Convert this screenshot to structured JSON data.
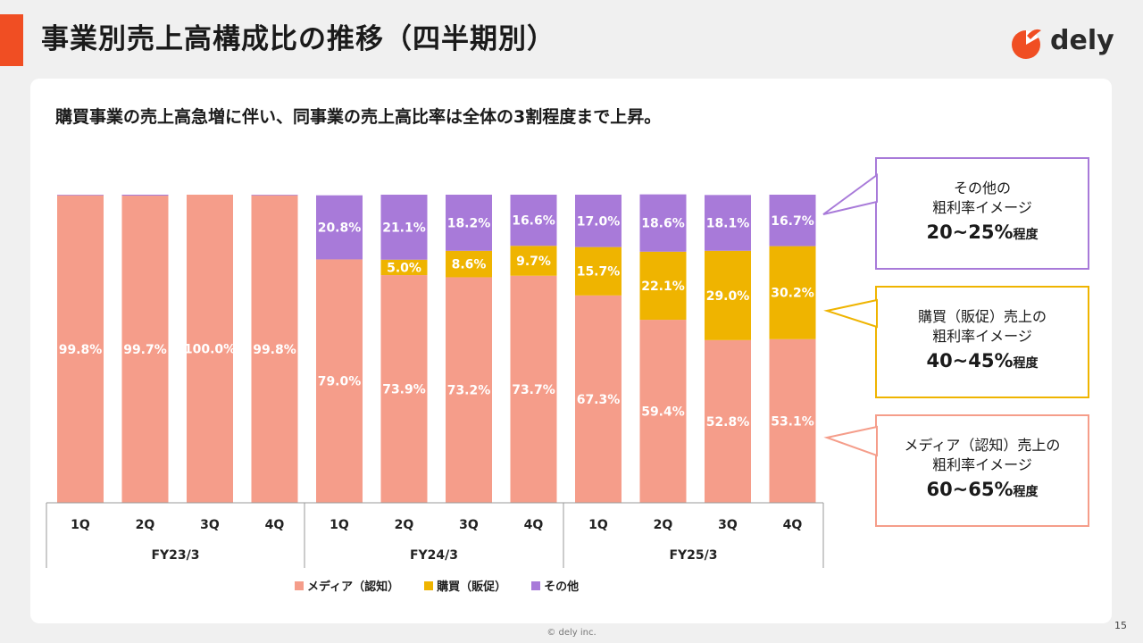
{
  "page_title": "事業別売上高構成比の推移（四半期別）",
  "subtitle": "購買事業の売上高急増に伴い、同事業の売上高比率は全体の3割程度まで上昇。",
  "logo_text": "dely",
  "page_number": "15",
  "copyright": "© dely inc.",
  "colors": {
    "media": "#f59d8a",
    "purchase": "#efb400",
    "other": "#a87ad9",
    "brand": "#f04e23"
  },
  "callouts": [
    {
      "line1": "その他の",
      "line2": "粗利率イメージ",
      "pct": "20~25%",
      "suffix": "程度",
      "color": "#a87ad9"
    },
    {
      "line1": "購買（販促）売上の",
      "line2": "粗利率イメージ",
      "pct": "40~45%",
      "suffix": "程度",
      "color": "#efb400"
    },
    {
      "line1": "メディア（認知）売上の",
      "line2": "粗利率イメージ",
      "pct": "60~65%",
      "suffix": "程度",
      "color": "#f59d8a"
    }
  ],
  "chart_data": {
    "type": "bar",
    "stacked": true,
    "percent_stacked": true,
    "categories": [
      "1Q",
      "2Q",
      "3Q",
      "4Q",
      "1Q",
      "2Q",
      "3Q",
      "4Q",
      "1Q",
      "2Q",
      "3Q",
      "4Q"
    ],
    "groups": [
      {
        "label": "FY23/3",
        "count": 4
      },
      {
        "label": "FY24/3",
        "count": 4
      },
      {
        "label": "FY25/3",
        "count": 4
      }
    ],
    "series": [
      {
        "name": "メディア（認知）",
        "values": [
          99.8,
          99.7,
          100.0,
          99.8,
          79.0,
          73.9,
          73.2,
          73.7,
          67.3,
          59.4,
          52.8,
          53.1
        ],
        "labels": [
          "99.8%",
          "99.7%",
          "100.0%",
          "99.8%",
          "79.0%",
          "73.9%",
          "73.2%",
          "73.7%",
          "67.3%",
          "59.4%",
          "52.8%",
          "53.1%"
        ]
      },
      {
        "name": "購買（販促）",
        "values": [
          0,
          0,
          0,
          0,
          0,
          5.0,
          8.6,
          9.7,
          15.7,
          22.1,
          29.0,
          30.2
        ],
        "labels": [
          "",
          "",
          "",
          "",
          "",
          "5.0%",
          "8.6%",
          "9.7%",
          "15.7%",
          "22.1%",
          "29.0%",
          "30.2%"
        ]
      },
      {
        "name": "その他",
        "values": [
          0.2,
          0.3,
          0,
          0.2,
          20.8,
          21.1,
          18.2,
          16.6,
          17.0,
          18.6,
          18.1,
          16.7
        ],
        "labels": [
          "",
          "",
          "",
          "",
          "20.8%",
          "21.1%",
          "18.2%",
          "16.6%",
          "17.0%",
          "18.6%",
          "18.1%",
          "16.7%"
        ]
      }
    ],
    "ylim": [
      0,
      100
    ],
    "legend": "bottom"
  }
}
